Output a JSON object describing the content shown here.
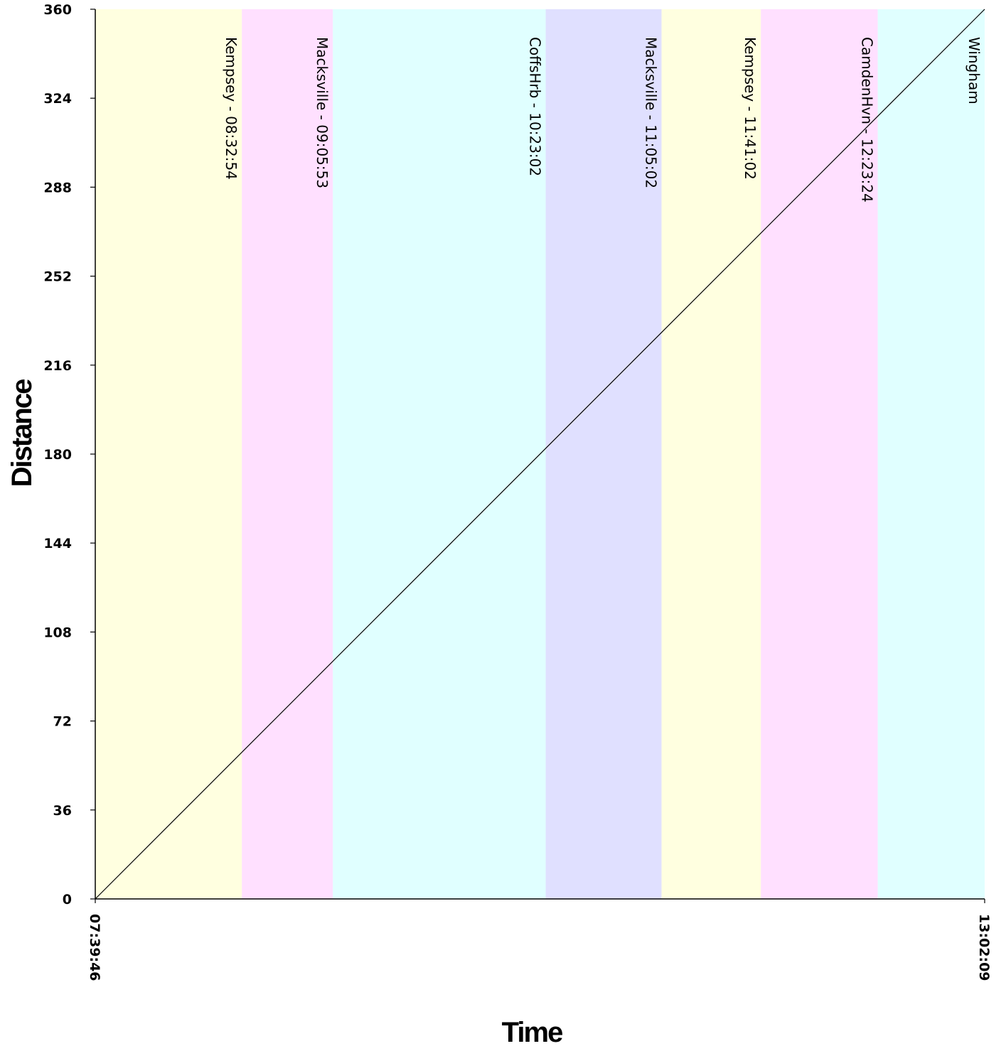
{
  "chart_data": {
    "type": "line",
    "title": "",
    "xlabel": "Time",
    "ylabel": "Distance",
    "x_range_labels": [
      "07:39:46",
      "13:02:09"
    ],
    "x_range_seconds": [
      27586,
      46929
    ],
    "ylim": [
      0,
      360
    ],
    "y_ticks": [
      0,
      36,
      72,
      108,
      144,
      180,
      216,
      252,
      288,
      324,
      360
    ],
    "grid": false,
    "series": [
      {
        "color": "#000000",
        "points": [
          {
            "t": "07:39:46",
            "distance": 0
          },
          {
            "t": "13:02:09",
            "distance": 360
          }
        ]
      }
    ],
    "bands": [
      {
        "label": "Kempsey - 08:32:54",
        "start": "07:39:46",
        "end": "08:32:54",
        "color": "#ffffe0"
      },
      {
        "label": "Macksville - 09:05:53",
        "start": "08:32:54",
        "end": "09:05:53",
        "color": "#ffe0ff"
      },
      {
        "label": "CoffsHrb - 10:23:02",
        "start": "09:05:53",
        "end": "10:23:02",
        "color": "#e0ffff"
      },
      {
        "label": "Macksville - 11:05:02",
        "start": "10:23:02",
        "end": "11:05:02",
        "color": "#e0e0ff"
      },
      {
        "label": "Kempsey - 11:41:02",
        "start": "11:05:02",
        "end": "11:41:02",
        "color": "#ffffe0"
      },
      {
        "label": "CamdenHvn - 12:23:24",
        "start": "11:41:02",
        "end": "12:23:24",
        "color": "#ffe0ff"
      },
      {
        "label": "Wingham",
        "start": "12:23:24",
        "end": "13:02:09",
        "color": "#e0ffff"
      }
    ]
  }
}
